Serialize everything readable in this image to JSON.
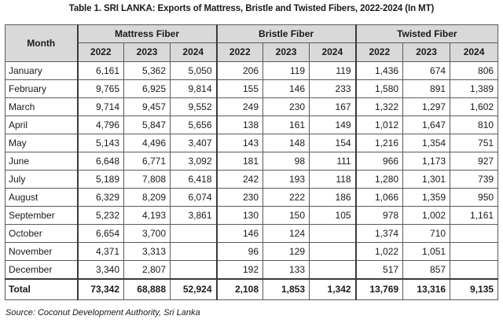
{
  "title": "Table 1. SRI LANKA: Exports of Mattress, Bristle and Twisted Fibers, 2022-2024 (In MT)",
  "header": {
    "month": "Month",
    "groups": [
      "Mattress Fiber",
      "Bristle Fiber",
      "Twisted Fiber"
    ],
    "years": [
      "2022",
      "2023",
      "2024",
      "2022",
      "2023",
      "2024",
      "2022",
      "2023",
      "2024"
    ]
  },
  "rows": [
    {
      "month": "January",
      "values": [
        "6,161",
        "5,362",
        "5,050",
        "206",
        "119",
        "119",
        "1,436",
        "674",
        "806"
      ]
    },
    {
      "month": "February",
      "values": [
        "9,765",
        "6,925",
        "9,814",
        "155",
        "146",
        "233",
        "1,580",
        "891",
        "1,389"
      ]
    },
    {
      "month": "March",
      "values": [
        "9,714",
        "9,457",
        "9,552",
        "249",
        "230",
        "167",
        "1,322",
        "1,297",
        "1,602"
      ]
    },
    {
      "month": "April",
      "values": [
        "4,796",
        "5,847",
        "5,656",
        "138",
        "161",
        "149",
        "1,012",
        "1,647",
        "810"
      ]
    },
    {
      "month": "May",
      "values": [
        "5,143",
        "4,496",
        "3,407",
        "143",
        "148",
        "154",
        "1,216",
        "1,354",
        "751"
      ]
    },
    {
      "month": "June",
      "values": [
        "6,648",
        "6,771",
        "3,092",
        "181",
        "98",
        "111",
        "966",
        "1,173",
        "927"
      ]
    },
    {
      "month": "July",
      "values": [
        "5,189",
        "7,808",
        "6,418",
        "242",
        "193",
        "118",
        "1,280",
        "1,301",
        "739"
      ]
    },
    {
      "month": "August",
      "values": [
        "6,329",
        "8,209",
        "6,074",
        "230",
        "222",
        "186",
        "1,066",
        "1,359",
        "950"
      ]
    },
    {
      "month": "September",
      "values": [
        "5,232",
        "4,193",
        "3,861",
        "130",
        "150",
        "105",
        "978",
        "1,002",
        "1,161"
      ]
    },
    {
      "month": "October",
      "values": [
        "6,654",
        "3,700",
        "",
        "146",
        "124",
        "",
        "1,374",
        "710",
        ""
      ]
    },
    {
      "month": "November",
      "values": [
        "4,371",
        "3,313",
        "",
        "96",
        "129",
        "",
        "1,022",
        "1,051",
        ""
      ]
    },
    {
      "month": "December",
      "values": [
        "3,340",
        "2,807",
        "",
        "192",
        "133",
        "",
        "517",
        "857",
        ""
      ]
    }
  ],
  "total": {
    "label": "Total",
    "values": [
      "73,342",
      "68,888",
      "52,924",
      "2,108",
      "1,853",
      "1,342",
      "13,769",
      "13,316",
      "9,135"
    ]
  },
  "source": "Source: Coconut Development Authority, Sri Lanka"
}
